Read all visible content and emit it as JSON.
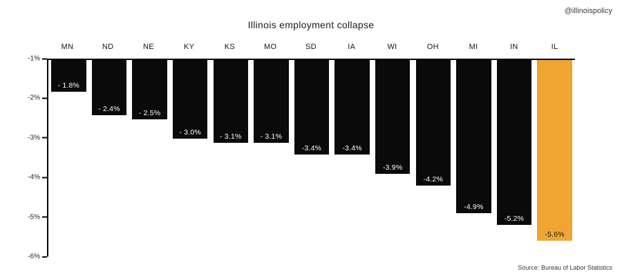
{
  "header": {
    "title": "Illinois employment collapse",
    "handle": "@illinoispolicy"
  },
  "footer": {
    "source": "Source: Bureau of Labor Statistics"
  },
  "chart_data": {
    "type": "bar",
    "title": "Illinois employment collapse",
    "categories": [
      "MN",
      "ND",
      "NE",
      "KY",
      "KS",
      "MO",
      "SD",
      "IA",
      "WI",
      "OH",
      "MI",
      "IN",
      "IL"
    ],
    "values": [
      -1.8,
      -2.4,
      -2.5,
      -3.0,
      -3.1,
      -3.1,
      -3.4,
      -3.4,
      -3.9,
      -4.2,
      -4.9,
      -5.2,
      -5.6
    ],
    "bar_labels": [
      "- 1.8%",
      "- 2.4%",
      "- 2.5%",
      "- 3.0%",
      "- 3.1%",
      "- 3.1%",
      "-3.4%",
      "-3.4%",
      "-3.9%",
      "-4.2%",
      "-4.9%",
      "-5.2%",
      "-5.6%"
    ],
    "xlabel": "",
    "ylabel": "",
    "ylim": [
      -6,
      -1
    ],
    "ytick_labels": [
      "-1%",
      "-2%",
      "-3%",
      "-4%",
      "-5%",
      "-6%"
    ],
    "grid": "off",
    "legend": "none",
    "bar_color": "#0a0a0a",
    "highlight_index": 12,
    "highlight_color": "#f0a432",
    "bar_label_color": "#ffffff",
    "highlight_label_color": "#1a1a1a"
  }
}
